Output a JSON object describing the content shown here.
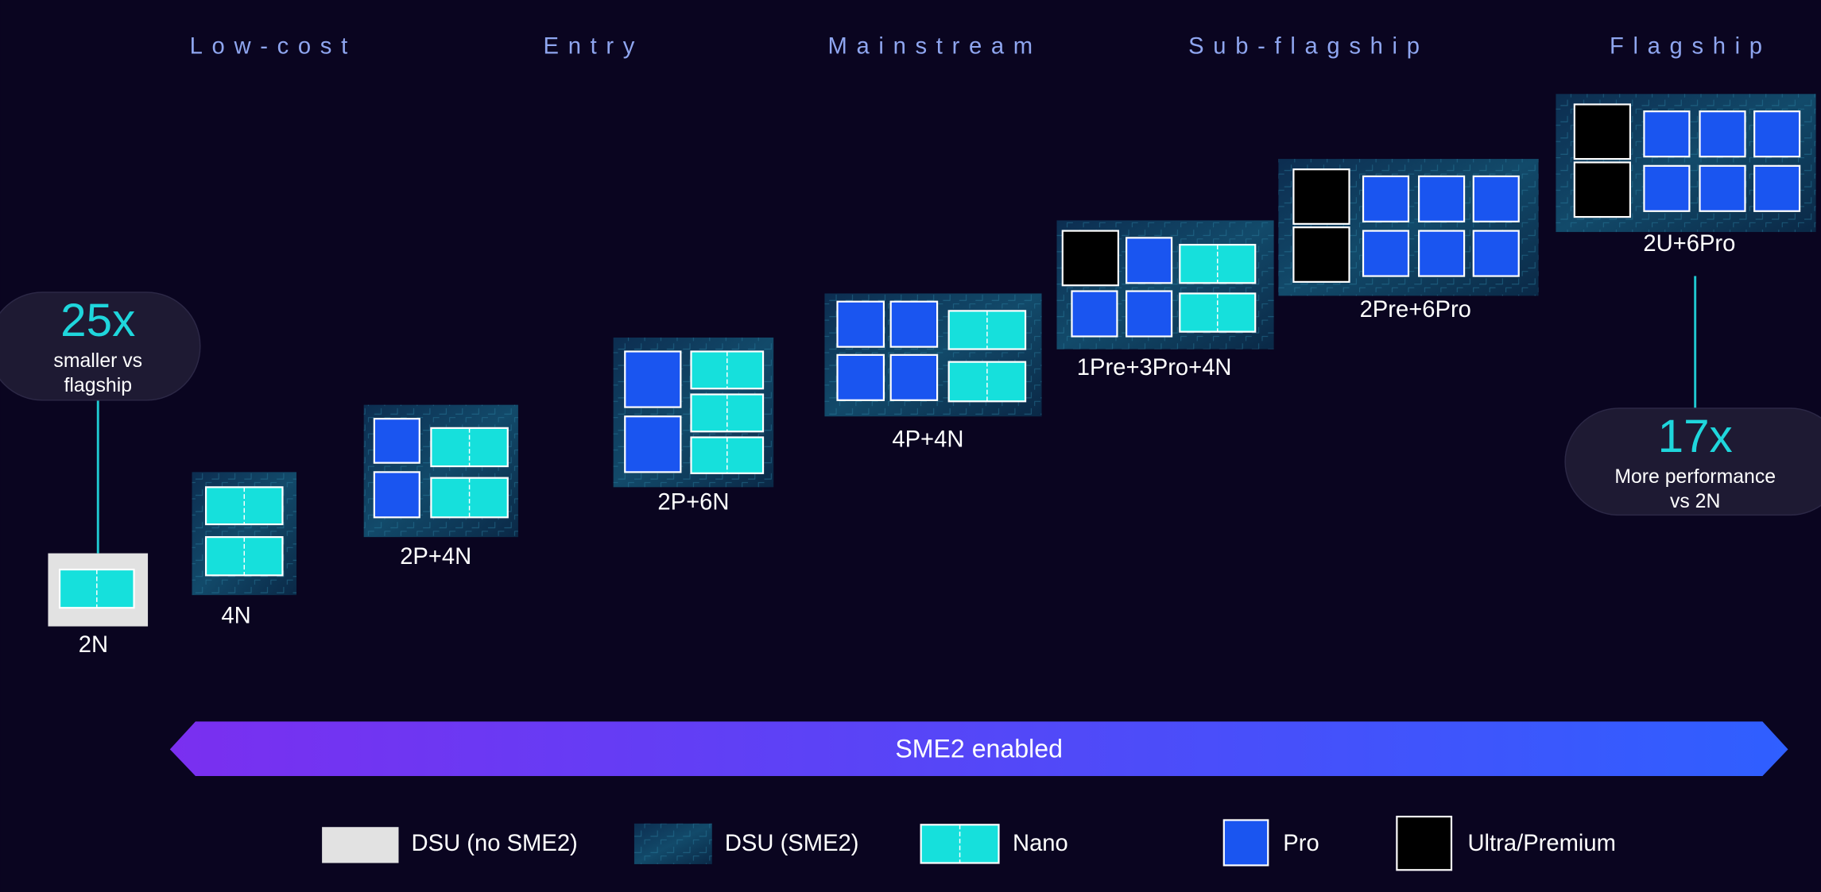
{
  "tiers": [
    "Low-cost",
    "Entry",
    "Mainstream",
    "Sub-flagship",
    "Flagship"
  ],
  "configs": [
    {
      "label": "2N"
    },
    {
      "label": "4N"
    },
    {
      "label": "2P+4N"
    },
    {
      "label": "2P+6N"
    },
    {
      "label": "4P+4N"
    },
    {
      "label": "1Pre+3Pro+4N"
    },
    {
      "label": "2Pre+6Pro"
    },
    {
      "label": "2U+6Pro"
    }
  ],
  "callouts": [
    {
      "value": "25x",
      "lines": [
        "smaller vs",
        "flagship"
      ]
    },
    {
      "value": "17x",
      "lines": [
        "More performance",
        "vs 2N"
      ]
    }
  ],
  "banner": "SME2 enabled",
  "legend": [
    "DSU (no SME2)",
    "DSU (SME2)",
    "Nano",
    "Pro",
    "Ultra/Premium"
  ]
}
